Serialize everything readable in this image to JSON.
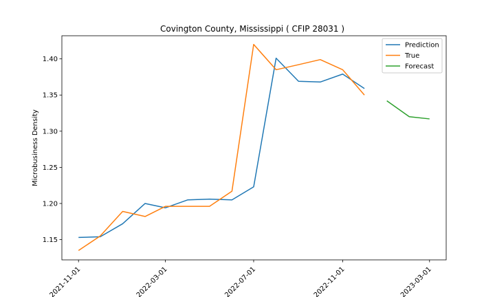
{
  "chart_data": {
    "type": "line",
    "title": "Covington County, Mississippi ( CFIP 28031 )",
    "xlabel": "",
    "ylabel": "Microbusiness Density",
    "ylim": [
      1.122,
      1.432
    ],
    "xlim": [
      "2021-10-09",
      "2023-03-24"
    ],
    "yticks": [
      "1.15",
      "1.20",
      "1.25",
      "1.30",
      "1.35",
      "1.40"
    ],
    "xticks": [
      "2021-11-01",
      "2022-03-01",
      "2022-07-01",
      "2022-11-01",
      "2023-03-01"
    ],
    "grid": false,
    "legend_position": "top-right",
    "series": [
      {
        "name": "Prediction",
        "color": "#1f77b4",
        "x": [
          "2021-11-01",
          "2021-12-01",
          "2022-01-01",
          "2022-02-01",
          "2022-03-01",
          "2022-04-01",
          "2022-05-01",
          "2022-06-01",
          "2022-07-01",
          "2022-08-01",
          "2022-09-01",
          "2022-10-01",
          "2022-11-01",
          "2022-12-01"
        ],
        "y": [
          1.153,
          1.154,
          1.172,
          1.2,
          1.194,
          1.205,
          1.206,
          1.205,
          1.223,
          1.401,
          1.369,
          1.368,
          1.379,
          1.359
        ]
      },
      {
        "name": "True",
        "color": "#ff7f0e",
        "x": [
          "2021-11-01",
          "2021-12-01",
          "2022-01-01",
          "2022-02-01",
          "2022-03-01",
          "2022-04-01",
          "2022-05-01",
          "2022-06-01",
          "2022-07-01",
          "2022-08-01",
          "2022-09-01",
          "2022-10-01",
          "2022-11-01",
          "2022-12-01"
        ],
        "y": [
          1.135,
          1.155,
          1.189,
          1.182,
          1.196,
          1.196,
          1.196,
          1.217,
          1.42,
          1.385,
          1.392,
          1.399,
          1.385,
          1.35
        ]
      },
      {
        "name": "Forecast",
        "color": "#2ca02c",
        "x": [
          "2023-01-01",
          "2023-02-01",
          "2023-03-01"
        ],
        "y": [
          1.342,
          1.32,
          1.317
        ]
      }
    ]
  }
}
